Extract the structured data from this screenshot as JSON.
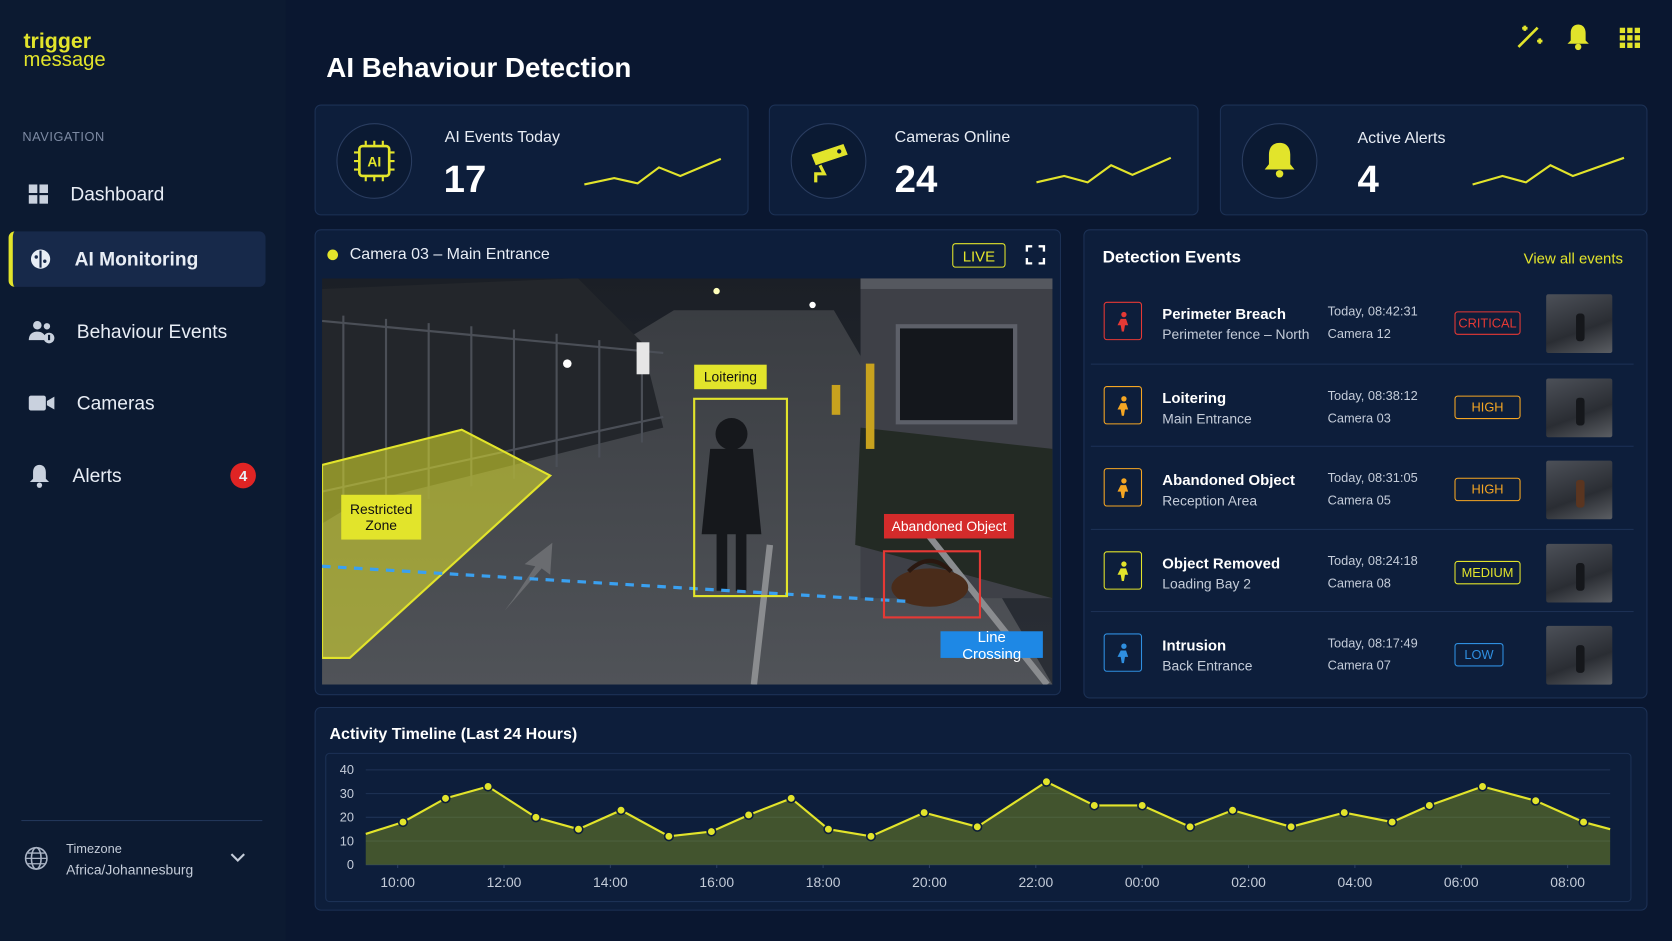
{
  "brand": {
    "line1": "trigger",
    "line2": "message"
  },
  "nav": {
    "heading": "NAVIGATION",
    "items": [
      {
        "label": "Dashboard"
      },
      {
        "label": "AI Monitoring"
      },
      {
        "label": "Behaviour Events"
      },
      {
        "label": "Cameras"
      },
      {
        "label": "Alerts",
        "badge": 4
      }
    ]
  },
  "timezone": {
    "label": "Timezone",
    "value": "Africa/Johannesburg"
  },
  "header": {
    "title": "AI Behaviour Detection"
  },
  "stats": [
    {
      "icon": "AI",
      "label": "AI Events Today",
      "value": 17
    },
    {
      "label": "Cameras Online",
      "value": 24
    },
    {
      "label": "Active Alerts",
      "value": 4
    }
  ],
  "camera": {
    "title": "Camera 03 – Main Entrance",
    "status": "LIVE",
    "detections": [
      "Restricted Zone",
      "Loitering",
      "Abandoned Object",
      "Line Crossing"
    ]
  },
  "events": {
    "title": "Detection Events",
    "link": "View all events",
    "items": [
      {
        "title": "Perimeter Breach",
        "location": "Perimeter fence – North",
        "time": "Today, 08:42:31",
        "camera": "Camera 12",
        "severity": "CRITICAL",
        "color": "#e53935"
      },
      {
        "title": "Loitering",
        "location": "Main Entrance",
        "time": "Today, 08:38:12",
        "camera": "Camera 03",
        "severity": "HIGH",
        "color": "#f5a623"
      },
      {
        "title": "Abandoned Object",
        "location": "Reception Area",
        "time": "Today, 08:31:05",
        "camera": "Camera 05",
        "severity": "HIGH",
        "color": "#f5a623"
      },
      {
        "title": "Object Removed",
        "location": "Loading Bay 2",
        "time": "Today, 08:24:18",
        "camera": "Camera 08",
        "severity": "MEDIUM",
        "color": "#e2e42b"
      },
      {
        "title": "Intrusion",
        "location": "Back Entrance",
        "time": "Today, 08:17:49",
        "camera": "Camera 07",
        "severity": "LOW",
        "color": "#2f8fe0"
      }
    ]
  },
  "chart_data": {
    "type": "line",
    "title": "Activity Timeline (Last 24 Hours)",
    "x": [
      9.4,
      10.1,
      10.9,
      11.7,
      12.6,
      13.4,
      14.2,
      15.1,
      15.9,
      16.6,
      17.4,
      18.1,
      18.9,
      19.9,
      20.9,
      22.2,
      23.1,
      24.0,
      24.9,
      25.7,
      26.8,
      27.8,
      28.7,
      29.4,
      30.4,
      31.4,
      32.3,
      32.8
    ],
    "values": [
      13,
      18,
      28,
      33,
      20,
      15,
      23,
      12,
      14,
      21,
      28,
      15,
      12,
      22,
      16,
      35,
      25,
      25,
      16,
      23,
      16,
      22,
      18,
      25,
      33,
      27,
      18,
      15
    ],
    "xlim": [
      9.4,
      32.8
    ],
    "xticks": [
      {
        "value": 10,
        "label": "10:00"
      },
      {
        "value": 12,
        "label": "12:00"
      },
      {
        "value": 14,
        "label": "14:00"
      },
      {
        "value": 16,
        "label": "16:00"
      },
      {
        "value": 18,
        "label": "18:00"
      },
      {
        "value": 20,
        "label": "20:00"
      },
      {
        "value": 22,
        "label": "22:00"
      },
      {
        "value": 24,
        "label": "00:00"
      },
      {
        "value": 26,
        "label": "02:00"
      },
      {
        "value": 28,
        "label": "04:00"
      },
      {
        "value": 30,
        "label": "06:00"
      },
      {
        "value": 32,
        "label": "08:00"
      }
    ],
    "ylim": [
      0,
      40
    ],
    "yticks": [
      0,
      10,
      20,
      30,
      40
    ],
    "color": "#e2e42b",
    "grid": true
  }
}
